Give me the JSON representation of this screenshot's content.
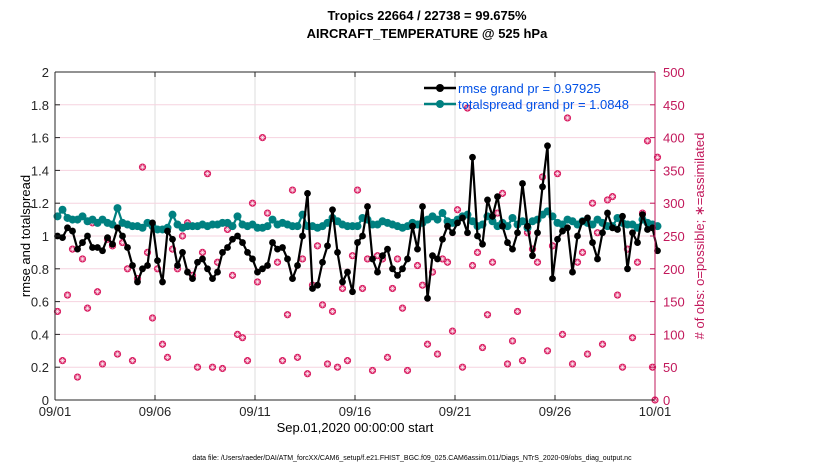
{
  "chart_data": {
    "type": "line",
    "title": [
      "Tropics 22664 / 22738 = 99.675%",
      "AIRCRAFT_TEMPERATURE @ 525 hPa"
    ],
    "xlabel": "Sep.01,2020 00:00:00 start",
    "ylabel": "rmse and totalspread",
    "y2label": "# of obs: o=possible; ∗=assimilated",
    "footer": "data file: /Users/raeder/DAI/ATM_forcXX/CAM6_setup/f.e21.FHIST_BGC.f09_025.CAM6assim.011/Diags_NTrS_2020-09/obs_diag_output.nc",
    "x_ticks": [
      "09/01",
      "09/06",
      "09/11",
      "09/16",
      "09/21",
      "09/26",
      "10/01"
    ],
    "x_range_days": [
      0,
      30
    ],
    "x_step_days": 0.25,
    "ylim": [
      0,
      2
    ],
    "y_ticks": [
      "0",
      "0.2",
      "0.4",
      "0.6",
      "0.8",
      "1",
      "1.2",
      "1.4",
      "1.6",
      "1.8",
      "2"
    ],
    "y2lim": [
      0,
      500
    ],
    "y2_ticks": [
      "0",
      "50",
      "100",
      "150",
      "200",
      "250",
      "300",
      "350",
      "400",
      "450",
      "500"
    ],
    "grid": true,
    "legend_position": "top-right",
    "colors": {
      "rmse": "#000000",
      "totalspread": "#008080",
      "obs": "#d81b60",
      "legend_text": "#0050e6",
      "right_axis": "#c2185b"
    },
    "series": [
      {
        "name": "rmse grand pr = 0.97925",
        "key": "rmse",
        "axis": "left",
        "values": [
          1.0,
          0.99,
          1.05,
          1.03,
          0.92,
          0.96,
          1.0,
          0.93,
          0.93,
          0.91,
          0.99,
          0.95,
          1.05,
          1.0,
          0.93,
          0.82,
          0.72,
          0.8,
          0.82,
          1.08,
          0.85,
          0.72,
          1.03,
          0.98,
          0.82,
          0.9,
          0.78,
          0.74,
          0.84,
          0.86,
          0.8,
          0.74,
          0.78,
          0.9,
          0.93,
          0.98,
          1.0,
          0.96,
          0.9,
          0.86,
          0.78,
          0.8,
          0.82,
          0.96,
          0.92,
          0.93,
          0.86,
          0.74,
          0.82,
          1.0,
          1.26,
          0.68,
          0.7,
          0.84,
          0.94,
          1.16,
          0.9,
          0.72,
          0.78,
          0.66,
          0.96,
          1.0,
          1.18,
          0.86,
          0.78,
          0.88,
          0.92,
          0.8,
          0.76,
          0.8,
          0.86,
          1.06,
          0.92,
          1.18,
          0.62,
          0.88,
          0.86,
          0.98,
          1.06,
          1.02,
          1.08,
          1.11,
          1.02,
          1.48,
          1.0,
          0.95,
          1.22,
          1.12,
          1.24,
          1.06,
          0.96,
          0.92,
          1.02,
          1.32,
          1.06,
          0.88,
          1.02,
          1.3,
          1.55,
          0.74,
          0.98,
          1.03,
          1.05,
          0.78,
          1.0,
          1.09,
          1.11,
          0.96,
          0.86,
          1.02,
          1.14,
          1.05,
          1.04,
          1.12,
          0.8,
          1.02,
          0.96,
          1.13,
          1.04,
          1.05,
          0.91
        ]
      },
      {
        "name": "totalspread grand pr = 1.0848",
        "key": "totalspread",
        "axis": "left",
        "values": [
          1.12,
          1.16,
          1.11,
          1.1,
          1.1,
          1.12,
          1.09,
          1.1,
          1.08,
          1.1,
          1.08,
          1.07,
          1.17,
          1.08,
          1.07,
          1.06,
          1.06,
          1.05,
          1.08,
          1.06,
          1.04,
          1.04,
          1.05,
          1.13,
          1.07,
          1.05,
          1.06,
          1.06,
          1.06,
          1.07,
          1.06,
          1.07,
          1.07,
          1.08,
          1.08,
          1.06,
          1.12,
          1.07,
          1.06,
          1.07,
          1.05,
          1.05,
          1.06,
          1.1,
          1.07,
          1.08,
          1.07,
          1.06,
          1.06,
          1.13,
          1.06,
          1.06,
          1.05,
          1.06,
          1.08,
          1.11,
          1.09,
          1.07,
          1.06,
          1.06,
          1.06,
          1.11,
          1.1,
          1.07,
          1.07,
          1.09,
          1.08,
          1.07,
          1.06,
          1.05,
          1.06,
          1.08,
          1.07,
          1.08,
          1.1,
          1.12,
          1.1,
          1.14,
          1.09,
          1.08,
          1.1,
          1.12,
          1.13,
          1.09,
          1.06,
          1.07,
          1.12,
          1.09,
          1.06,
          1.08,
          1.06,
          1.11,
          1.07,
          1.09,
          1.05,
          1.09,
          1.1,
          1.13,
          1.15,
          1.12,
          1.08,
          1.07,
          1.1,
          1.09,
          1.07,
          1.09,
          1.08,
          1.07,
          1.1,
          1.08,
          1.06,
          1.06,
          1.11,
          1.08,
          1.07,
          1.07,
          1.05,
          1.1,
          1.08,
          1.07,
          1.06
        ]
      },
      {
        "name": "# obs assimilated",
        "key": "obs",
        "axis": "right",
        "values": [
          135,
          60,
          160,
          230,
          35,
          215,
          140,
          270,
          165,
          55,
          245,
          235,
          70,
          240,
          200,
          60,
          185,
          355,
          225,
          125,
          200,
          85,
          65,
          230,
          200,
          250,
          270,
          190,
          50,
          225,
          345,
          50,
          210,
          48,
          260,
          190,
          100,
          95,
          60,
          300,
          180,
          400,
          285,
          275,
          210,
          60,
          130,
          320,
          65,
          215,
          40,
          175,
          235,
          145,
          55,
          135,
          50,
          170,
          60,
          220,
          320,
          170,
          215,
          45,
          220,
          215,
          65,
          170,
          215,
          140,
          45,
          265,
          205,
          175,
          85,
          195,
          70,
          215,
          210,
          105,
          290,
          50,
          445,
          205,
          225,
          80,
          130,
          210,
          285,
          315,
          55,
          90,
          135,
          60,
          255,
          230,
          210,
          340,
          75,
          235,
          345,
          100,
          430,
          55,
          210,
          225,
          70,
          300,
          255,
          85,
          305,
          310,
          160,
          50,
          230,
          95,
          210,
          285,
          395,
          50,
          370,
          0
        ]
      }
    ],
    "obs_possible_markers": true
  }
}
